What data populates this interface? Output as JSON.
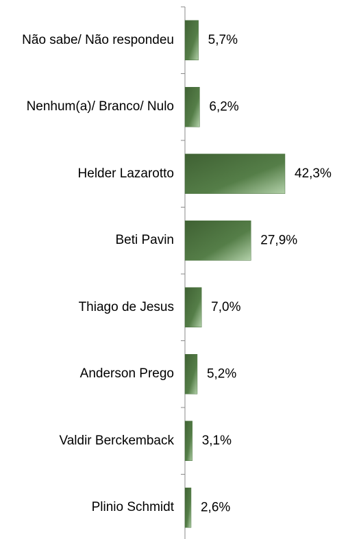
{
  "chart_data": {
    "type": "barh",
    "categories": [
      "Não sabe/ Não respondeu",
      "Nenhum(a)/ Branco/ Nulo",
      "Helder Lazarotto",
      "Beti Pavin",
      "Thiago de Jesus",
      "Anderson Prego",
      "Valdir Berckemback",
      "Plinio Schmidt"
    ],
    "values": [
      5.7,
      6.2,
      42.3,
      27.9,
      7.0,
      5.2,
      3.1,
      2.6
    ],
    "value_labels": [
      "5,7%",
      "6,2%",
      "42,3%",
      "27,9%",
      "7,0%",
      "5,2%",
      "3,1%",
      "2,6%"
    ],
    "color": "#4d7441"
  }
}
